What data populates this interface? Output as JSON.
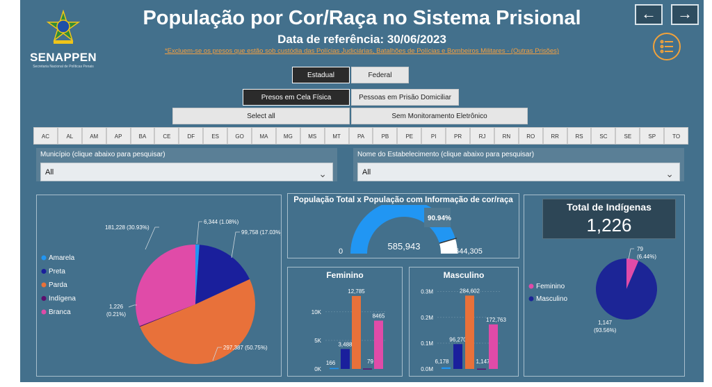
{
  "header": {
    "title": "População por Cor/Raça no Sistema Prisional",
    "subtitle": "Data de referência: 30/06/2023",
    "note": "*Excluem-se os presos que estão sob custódia das Polícias Judiciárias, Batalhões de Polícias e Bombeiros Militares - (Outras Prisões)",
    "brand": "SENAPPEN",
    "brand_sub": "Secretaria Nacional de Políticas Penais",
    "back_icon": "arrow-left-icon",
    "forward_icon": "arrow-right-icon",
    "menu_icon": "list-menu-icon"
  },
  "filters": {
    "scope": [
      "Estadual",
      "Federal"
    ],
    "custody": [
      "Presos em Cela Física",
      "Pessoas em Prisão Domiciliar"
    ],
    "monitor": [
      "Select all",
      "Sem Monitoramento Eletrônico"
    ],
    "ufs": [
      "AC",
      "AL",
      "AM",
      "AP",
      "BA",
      "CE",
      "DF",
      "ES",
      "GO",
      "MA",
      "MG",
      "MS",
      "MT",
      "PA",
      "PB",
      "PE",
      "PI",
      "PR",
      "RJ",
      "RN",
      "RO",
      "RR",
      "RS",
      "SC",
      "SE",
      "SP",
      "TO"
    ],
    "municipio_label": "Município (clique abaixo para pesquisar)",
    "municipio_value": "All",
    "estab_label": "Nome do Estabelecimento (clique abaixo para pesquisar)",
    "estab_value": "All"
  },
  "colors": {
    "amarela": "#2196f3",
    "preta": "#1a1f9c",
    "parda": "#e8713a",
    "indigena": "#5b0f6e",
    "branca": "#e04ba8",
    "gauge_fill": "#2196f3",
    "gauge_rest": "#ffffff"
  },
  "chart_data": [
    {
      "type": "pie",
      "title": "",
      "legend": [
        "Amarela",
        "Preta",
        "Parda",
        "Indígena",
        "Branca"
      ],
      "slices": [
        {
          "name": "Amarela",
          "value": 6344,
          "label": "6,344 (1.08%)"
        },
        {
          "name": "Preta",
          "value": 99758,
          "label": "99,758 (17.03%)"
        },
        {
          "name": "Parda",
          "value": 297387,
          "label": "297,387 (50.75%)"
        },
        {
          "name": "Indígena",
          "value": 1226,
          "label_value": "1,226",
          "label_pct": "(0.21%)"
        },
        {
          "name": "Branca",
          "value": 181228,
          "label": "181,228 (30.93%)"
        }
      ]
    },
    {
      "type": "gauge",
      "title": "População Total x População com Informação de cor/raça",
      "value": 585943,
      "max": 644305,
      "min": 0,
      "value_label": "585,943",
      "max_label": "644,305",
      "min_label": "0",
      "pct_label": "90.94%"
    },
    {
      "type": "bar",
      "title": "Feminino",
      "categories": [
        "Amarela",
        "Preta",
        "Parda",
        "Indígena",
        "Branca"
      ],
      "values": [
        166,
        3488,
        12785,
        79,
        8465
      ],
      "value_labels": [
        "166",
        "3,488",
        "12,785",
        "79",
        "8465"
      ],
      "ylim": [
        0,
        14000
      ],
      "yticks": [
        0,
        5000,
        10000
      ],
      "ytick_labels": [
        "0K",
        "5K",
        "10K"
      ]
    },
    {
      "type": "bar",
      "title": "Masculino",
      "categories": [
        "Amarela",
        "Preta",
        "Parda",
        "Indígena",
        "Branca"
      ],
      "values": [
        6178,
        96270,
        284602,
        1147,
        172763
      ],
      "value_labels": [
        "6,178",
        "96,270",
        "284,602",
        "1,147",
        "172,763"
      ],
      "ylim": [
        0,
        310000
      ],
      "yticks": [
        0,
        100000,
        200000,
        300000
      ],
      "ytick_labels": [
        "0.0M",
        "0.1M",
        "0.2M",
        "0.3M"
      ]
    },
    {
      "type": "pie",
      "title": "Total de Indígenas",
      "total_label": "1,226",
      "legend": [
        "Feminino",
        "Masculino"
      ],
      "slices": [
        {
          "name": "Feminino",
          "value": 79,
          "label_value": "79",
          "label_pct": "(6.44%)"
        },
        {
          "name": "Masculino",
          "value": 1147,
          "label_value": "1,147",
          "label_pct": "(93.56%)"
        }
      ]
    }
  ]
}
